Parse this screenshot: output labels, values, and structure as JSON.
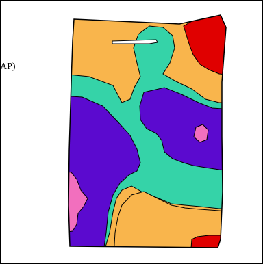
{
  "side_label": "AP)",
  "palette": {
    "orange": "#F9B54C",
    "teal": "#35D3A8",
    "purple": "#5B0ACF",
    "red": "#E00000",
    "pink": "#F26FBE",
    "white": "#FFFFFF",
    "outline": "#000000"
  },
  "regions": [
    {
      "name": "orange-zone",
      "color": "orange"
    },
    {
      "name": "teal-zone",
      "color": "teal"
    },
    {
      "name": "purple-zone",
      "color": "purple"
    },
    {
      "name": "red-zone",
      "color": "red"
    },
    {
      "name": "pink-zone",
      "color": "pink"
    },
    {
      "name": "white-marker",
      "color": "white"
    }
  ]
}
